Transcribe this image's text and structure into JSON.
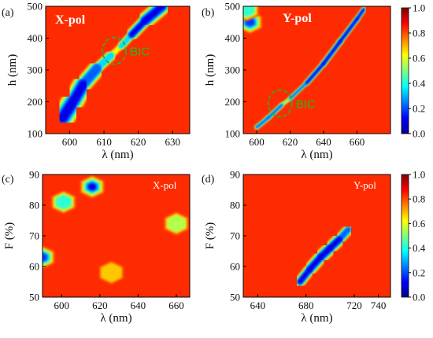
{
  "colormap": [
    "#00008f",
    "#0000ff",
    "#0080ff",
    "#00ffff",
    "#80ff80",
    "#ffff00",
    "#ff8000",
    "#ff0000",
    "#800000"
  ],
  "annotation_color": "#33aa33",
  "panels": [
    {
      "id": "a",
      "label": "(a)",
      "pol_label": "X-pol",
      "bic_label": "BIC",
      "chart_data": {
        "type": "heatmap",
        "title": "X-pol",
        "xlabel": "λ (nm)",
        "ylabel": "h (nm)",
        "xlim": [
          593,
          635
        ],
        "ylim": [
          100,
          500
        ],
        "xticks": [
          "600",
          "610",
          "620",
          "630"
        ],
        "yticks": [
          "100",
          "200",
          "300",
          "400",
          "500"
        ],
        "features": [
          {
            "kind": "band",
            "points": [
              [
                598,
                150
              ],
              [
                601,
                200
              ],
              [
                604,
                255
              ],
              [
                608,
                305
              ],
              [
                612,
                345
              ],
              [
                615,
                375
              ],
              [
                618,
                410
              ],
              [
                622,
                455
              ],
              [
                627,
                500
              ]
            ],
            "width_nm": [
              5,
              5,
              4,
              3,
              1.2,
              1.2,
              2,
              3,
              4
            ],
            "min_value": [
              0.02,
              0.05,
              0.15,
              0.3,
              0.55,
              0.55,
              0.25,
              0.1,
              0.1
            ]
          },
          {
            "kind": "ring",
            "center": [
              613,
              360
            ],
            "label": "BIC"
          }
        ]
      }
    },
    {
      "id": "b",
      "label": "(b)",
      "pol_label": "Y-pol",
      "bic_label": "BIC",
      "chart_data": {
        "type": "heatmap",
        "title": "Y-pol",
        "xlabel": "λ (nm)",
        "ylabel": "h (nm)",
        "xlim": [
          592,
          680
        ],
        "ylim": [
          100,
          500
        ],
        "xticks": [
          "600",
          "620",
          "640",
          "660"
        ],
        "yticks": [
          "100",
          "200",
          "300",
          "400",
          "500"
        ],
        "features": [
          {
            "kind": "band",
            "points": [
              [
                600,
                120
              ],
              [
                607,
                150
              ],
              [
                615,
                190
              ],
              [
                620,
                210
              ],
              [
                630,
                260
              ],
              [
                640,
                320
              ],
              [
                650,
                390
              ],
              [
                660,
                460
              ],
              [
                664,
                490
              ]
            ],
            "width_nm": [
              1.5,
              2,
              1.5,
              1,
              2,
              2.5,
              2.5,
              2,
              2
            ],
            "min_value": [
              0.3,
              0.2,
              0.4,
              0.6,
              0.15,
              0.05,
              0.05,
              0.1,
              0.2
            ]
          },
          {
            "kind": "spot",
            "center": [
              596,
              450
            ],
            "value": 0.1
          },
          {
            "kind": "spot",
            "center": [
              594,
              490
            ],
            "value": 0.4
          },
          {
            "kind": "ring",
            "center": [
              614,
              195
            ],
            "label": "BIC"
          }
        ]
      }
    },
    {
      "id": "c",
      "label": "(c)",
      "pol_label": "X-pol",
      "chart_data": {
        "type": "heatmap",
        "title": "X-pol",
        "xlabel": "λ (nm)",
        "ylabel": "F (%)",
        "xlim": [
          590,
          667
        ],
        "ylim": [
          50,
          90
        ],
        "xticks": [
          "600",
          "620",
          "640",
          "660"
        ],
        "yticks": [
          "50",
          "60",
          "70",
          "80",
          "90"
        ],
        "features": [
          {
            "kind": "spot",
            "center": [
              616,
              86
            ],
            "value": 0.05
          },
          {
            "kind": "spot",
            "center": [
              601,
              81
            ],
            "value": 0.35
          },
          {
            "kind": "spot",
            "center": [
              590,
              63
            ],
            "value": 0.15
          },
          {
            "kind": "spot",
            "center": [
              660,
              74
            ],
            "value": 0.55
          },
          {
            "kind": "spot",
            "center": [
              626,
              58
            ],
            "value": 0.65
          }
        ]
      }
    },
    {
      "id": "d",
      "label": "(d)",
      "pol_label": "Y-pol",
      "chart_data": {
        "type": "heatmap",
        "title": "Y-pol",
        "xlabel": "λ (nm)",
        "ylabel": "F (%)",
        "xlim": [
          628,
          750
        ],
        "ylim": [
          50,
          90
        ],
        "xticks": [
          "640",
          "680",
          "720",
          "740"
        ],
        "yticks": [
          "50",
          "60",
          "70",
          "80",
          "90"
        ],
        "features": [
          {
            "kind": "band",
            "points": [
              [
                675,
                55
              ],
              [
                683,
                59
              ],
              [
                692,
                63
              ],
              [
                700,
                66
              ],
              [
                708,
                69
              ],
              [
                715,
                72
              ]
            ],
            "width_nm": [
              6,
              7,
              8,
              8,
              7,
              5
            ],
            "min_value": [
              0.15,
              0.05,
              0.08,
              0.05,
              0.12,
              0.3
            ]
          }
        ]
      }
    }
  ],
  "colorbars": [
    {
      "id": "top",
      "ticks": [
        "0.0",
        "0.2",
        "0.4",
        "0.6",
        "0.8",
        "1.0"
      ],
      "range": [
        0,
        1
      ]
    },
    {
      "id": "bottom",
      "ticks": [
        "0.0",
        "0.2",
        "0.4",
        "0.6",
        "0.8",
        "1.0"
      ],
      "range": [
        0,
        1
      ]
    }
  ]
}
